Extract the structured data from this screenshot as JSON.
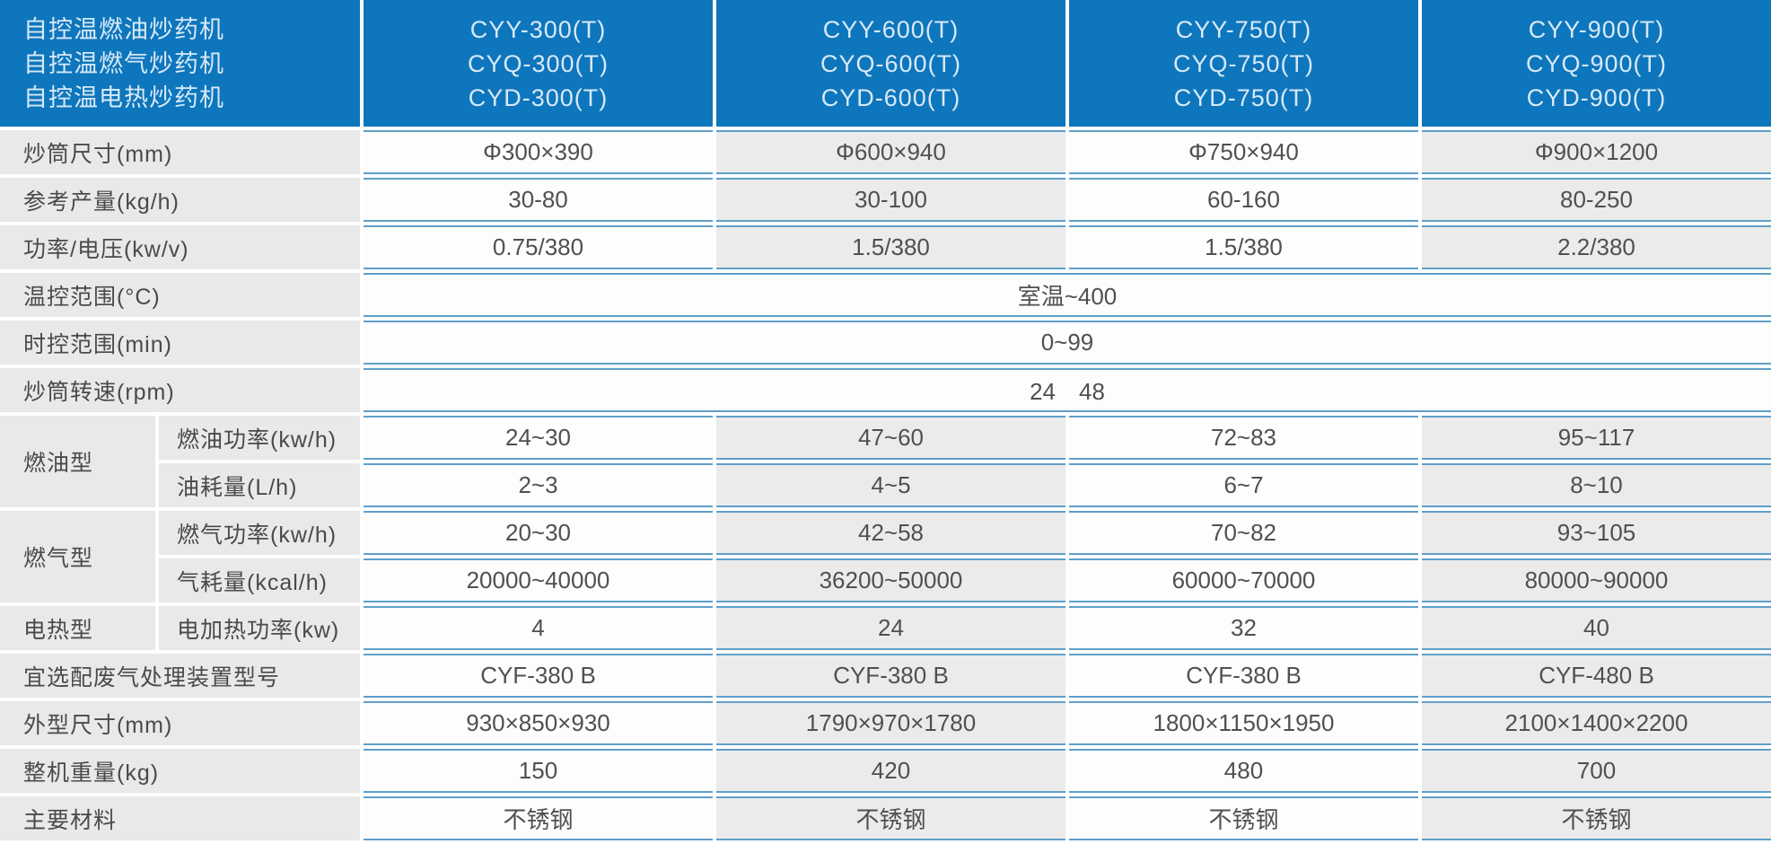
{
  "header": {
    "product_lines": [
      "自控温燃油炒药机",
      "自控温燃气炒药机",
      "自控温电热炒药机"
    ],
    "model_columns": [
      [
        "CYY-300(T)",
        "CYQ-300(T)",
        "CYD-300(T)"
      ],
      [
        "CYY-600(T)",
        "CYQ-600(T)",
        "CYD-600(T)"
      ],
      [
        "CYY-750(T)",
        "CYQ-750(T)",
        "CYD-750(T)"
      ],
      [
        "CYY-900(T)",
        "CYQ-900(T)",
        "CYD-900(T)"
      ]
    ]
  },
  "spec_rows": [
    {
      "label": "炒筒尺寸(mm)",
      "values": [
        "Φ300×390",
        "Φ600×940",
        "Φ750×940",
        "Φ900×1200"
      ]
    },
    {
      "label": "参考产量(kg/h)",
      "values": [
        "30-80",
        "30-100",
        "60-160",
        "80-250"
      ]
    },
    {
      "label": "功率/电压(kw/v)",
      "values": [
        "0.75/380",
        "1.5/380",
        "1.5/380",
        "2.2/380"
      ]
    },
    {
      "label": "温控范围(°C)",
      "merged": "室温~400"
    },
    {
      "label": "时控范围(min)",
      "merged": "0~99"
    },
    {
      "label": "炒筒转速(rpm)",
      "merged": "24　48"
    }
  ],
  "type_groups": [
    {
      "label": "燃油型",
      "rows": [
        {
          "label": "燃油功率(kw/h)",
          "values": [
            "24~30",
            "47~60",
            "72~83",
            "95~117"
          ]
        },
        {
          "label": "油耗量(L/h)",
          "values": [
            "2~3",
            "4~5",
            "6~7",
            "8~10"
          ]
        }
      ]
    },
    {
      "label": "燃气型",
      "rows": [
        {
          "label": "燃气功率(kw/h)",
          "values": [
            "20~30",
            "42~58",
            "70~82",
            "93~105"
          ]
        },
        {
          "label": "气耗量(kcal/h)",
          "values": [
            "20000~40000",
            "36200~50000",
            "60000~70000",
            "80000~90000"
          ]
        }
      ]
    },
    {
      "label": "电热型",
      "rows": [
        {
          "label": "电加热功率(kw)",
          "values": [
            "4",
            "24",
            "32",
            "40"
          ]
        }
      ]
    }
  ],
  "bottom_rows": [
    {
      "label": "宜选配废气处理装置型号",
      "values": [
        "CYF-380 B",
        "CYF-380 B",
        "CYF-380 B",
        "CYF-480 B"
      ]
    },
    {
      "label": "外型尺寸(mm)",
      "values": [
        "930×850×930",
        "1790×970×1780",
        "1800×1150×1950",
        "2100×1400×2200"
      ]
    },
    {
      "label": "整机重量(kg)",
      "values": [
        "150",
        "420",
        "480",
        "700"
      ]
    },
    {
      "label": "主要材料",
      "values": [
        "不锈钢",
        "不锈钢",
        "不锈钢",
        "不锈钢"
      ]
    }
  ],
  "colors": {
    "header_bg": "#0e76bc",
    "header_text": "#d7e9f7",
    "label_bg": "#e9e9e9",
    "cell_white_bg": "#fdfdfd",
    "cell_gray_bg": "#ebebeb",
    "row_line": "#5f9fc9",
    "text": "#505050"
  }
}
